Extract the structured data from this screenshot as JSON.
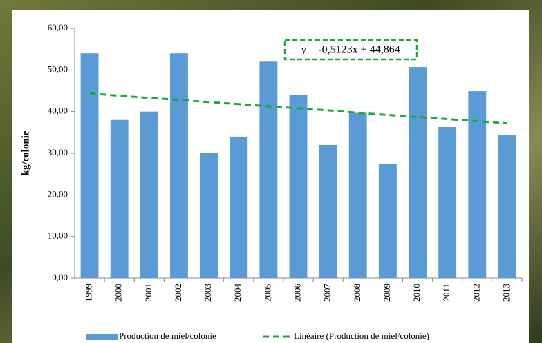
{
  "chart_data": {
    "type": "bar",
    "y_label": "kg/colonie",
    "categories": [
      "1999",
      "2000",
      "2001",
      "2002",
      "2003",
      "2004",
      "2005",
      "2006",
      "2007",
      "2008",
      "2009",
      "2010",
      "2011",
      "2012",
      "2013"
    ],
    "series": [
      {
        "name": "Production de miel/colonie",
        "color": "#5b9bd5",
        "values": [
          54,
          38,
          40,
          54,
          30,
          34,
          52,
          44,
          32,
          39.7,
          27.4,
          50.7,
          36.3,
          44.9,
          34.3
        ]
      },
      {
        "name": "Linéaire (Production de miel/colonie)",
        "color": "#1aaa3a",
        "type": "line",
        "values": [
          44.4,
          43.8,
          43.3,
          42.8,
          42.3,
          41.8,
          41.3,
          40.8,
          40.3,
          39.7,
          39.2,
          38.7,
          38.2,
          37.7,
          37.2
        ]
      }
    ],
    "annotation": "y = -0,5123x + 44,864",
    "ylim": [
      0,
      60
    ],
    "yticks": [
      {
        "value": 0,
        "label": "0,00"
      },
      {
        "value": 10,
        "label": "10,00"
      },
      {
        "value": 20,
        "label": "20,00"
      },
      {
        "value": 30,
        "label": "30,00"
      },
      {
        "value": 40,
        "label": "40,00"
      },
      {
        "value": 50,
        "label": "50,00"
      },
      {
        "value": 60,
        "label": "60,00"
      }
    ]
  }
}
